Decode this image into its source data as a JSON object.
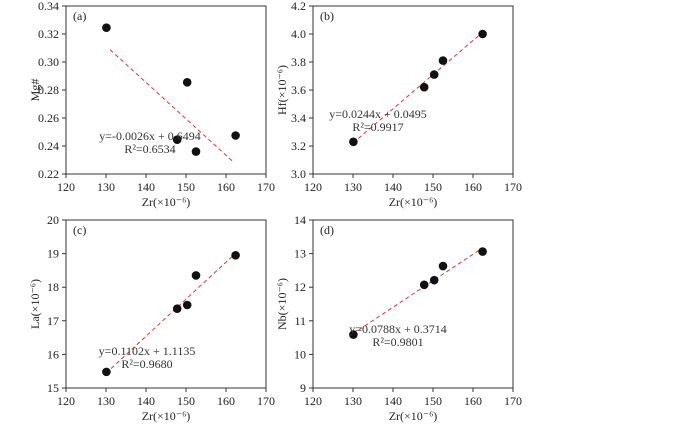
{
  "figure": {
    "fit_color": "#d9363e",
    "point_color": "#111111"
  },
  "chart_data": [
    {
      "type": "scatter",
      "panel_label": "(a)",
      "xlabel": "Zr(×10⁻⁶)",
      "ylabel": "Mg#",
      "xlim": [
        120,
        170
      ],
      "ylim": [
        0.22,
        0.34
      ],
      "xticks": [
        120,
        130,
        140,
        150,
        160,
        170
      ],
      "yticks": [
        0.22,
        0.24,
        0.26,
        0.28,
        0.3,
        0.32,
        0.34
      ],
      "ytick_decimals": 2,
      "x": [
        130.1,
        147.8,
        150.3,
        152.5,
        162.4
      ],
      "y": [
        0.3245,
        0.2445,
        0.2855,
        0.236,
        0.2475
      ],
      "fit": {
        "slope": -0.0026,
        "intercept": 0.6494,
        "x_range": [
          131,
          162
        ]
      },
      "equation": "y=-0.0026x + 0.6494",
      "r2": "R²=0.6534"
    },
    {
      "type": "scatter",
      "panel_label": "(b)",
      "xlabel": "Zr(×10⁻⁶)",
      "ylabel": "Hf(×10⁻⁶)",
      "xlim": [
        120,
        170
      ],
      "ylim": [
        3.0,
        4.2
      ],
      "xticks": [
        120,
        130,
        140,
        150,
        160,
        170
      ],
      "yticks": [
        3.0,
        3.2,
        3.4,
        3.6,
        3.8,
        4.0,
        4.2
      ],
      "ytick_decimals": 1,
      "x": [
        130.1,
        147.8,
        150.3,
        152.5,
        162.4
      ],
      "y": [
        3.23,
        3.62,
        3.71,
        3.81,
        4.0
      ],
      "fit": {
        "slope": 0.0244,
        "intercept": 0.0495,
        "x_range": [
          130,
          162
        ]
      },
      "equation": "y=0.0244x + 0.0495",
      "r2": "R²=0.9917"
    },
    {
      "type": "scatter",
      "panel_label": "(c)",
      "xlabel": "Zr(×10⁻⁶)",
      "ylabel": "La(×10⁻⁶)",
      "xlim": [
        120,
        170
      ],
      "ylim": [
        15,
        20
      ],
      "xticks": [
        120,
        130,
        140,
        150,
        160,
        170
      ],
      "yticks": [
        15,
        16,
        17,
        18,
        19,
        20
      ],
      "ytick_decimals": 0,
      "x": [
        130.1,
        147.8,
        150.3,
        152.5,
        162.4
      ],
      "y": [
        15.48,
        17.36,
        17.47,
        18.35,
        18.95
      ],
      "fit": {
        "slope": 0.1102,
        "intercept": 1.1135,
        "x_range": [
          130,
          162
        ]
      },
      "equation": "y=0.1102x + 1.1135",
      "r2": "R²=0.9680"
    },
    {
      "type": "scatter",
      "panel_label": "(d)",
      "xlabel": "Zr(×10⁻⁶)",
      "ylabel": "Nb(×10⁻⁶)",
      "xlim": [
        120,
        170
      ],
      "ylim": [
        9,
        14
      ],
      "xticks": [
        120,
        130,
        140,
        150,
        160,
        170
      ],
      "yticks": [
        9,
        10,
        11,
        12,
        13,
        14
      ],
      "ytick_decimals": 0,
      "x": [
        130.1,
        147.8,
        150.3,
        152.5,
        162.4
      ],
      "y": [
        10.59,
        12.07,
        12.21,
        12.63,
        13.06
      ],
      "fit": {
        "slope": 0.0788,
        "intercept": 0.3714,
        "x_range": [
          130,
          162
        ]
      },
      "equation": "y=0.0788x + 0.3714",
      "r2": "R²=0.9801"
    }
  ]
}
